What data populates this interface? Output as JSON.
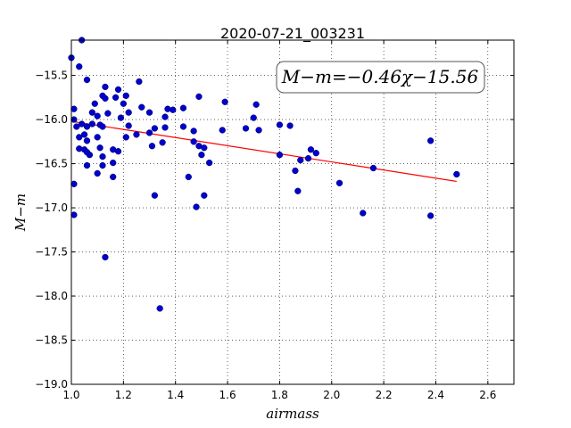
{
  "chart_data": {
    "type": "scatter",
    "title": "2020-07-21_003231",
    "xlabel": "airmass",
    "ylabel": "M−m",
    "xlim": [
      1.0,
      2.7
    ],
    "ylim": [
      -19.0,
      -15.1
    ],
    "inverted_y": true,
    "grid": true,
    "xticks": [
      1.0,
      1.2,
      1.4,
      1.6,
      1.8,
      2.0,
      2.2,
      2.4,
      2.6
    ],
    "xtick_labels": [
      "1.0",
      "1.2",
      "1.4",
      "1.6",
      "1.8",
      "2.0",
      "2.2",
      "2.4",
      "2.6"
    ],
    "yticks": [
      -15.5,
      -16.0,
      -16.5,
      -17.0,
      -17.5,
      -18.0,
      -18.5,
      -19.0
    ],
    "ytick_labels": [
      "−15.5",
      "−16.0",
      "−16.5",
      "−17.0",
      "−17.5",
      "−18.0",
      "−18.5",
      "−19.0"
    ],
    "annotation": "M−m=−0.46χ−15.56",
    "fit": {
      "slope": -0.46,
      "intercept": -15.56,
      "x_range": [
        1.0,
        2.48
      ],
      "color": "#ff0000"
    },
    "point_color": "#0000cc",
    "points": [
      [
        1.0,
        -15.3
      ],
      [
        1.01,
        -15.88
      ],
      [
        1.01,
        -16.0
      ],
      [
        1.01,
        -16.73
      ],
      [
        1.01,
        -17.08
      ],
      [
        1.02,
        -16.08
      ],
      [
        1.03,
        -16.33
      ],
      [
        1.03,
        -16.2
      ],
      [
        1.03,
        -15.4
      ],
      [
        1.04,
        -15.1
      ],
      [
        1.04,
        -16.05
      ],
      [
        1.05,
        -16.17
      ],
      [
        1.05,
        -16.34
      ],
      [
        1.06,
        -15.55
      ],
      [
        1.06,
        -16.08
      ],
      [
        1.06,
        -16.37
      ],
      [
        1.06,
        -16.24
      ],
      [
        1.06,
        -16.52
      ],
      [
        1.07,
        -16.4
      ],
      [
        1.08,
        -15.92
      ],
      [
        1.08,
        -16.05
      ],
      [
        1.09,
        -15.82
      ],
      [
        1.1,
        -16.61
      ],
      [
        1.1,
        -15.96
      ],
      [
        1.1,
        -16.2
      ],
      [
        1.11,
        -16.06
      ],
      [
        1.11,
        -16.32
      ],
      [
        1.12,
        -16.08
      ],
      [
        1.12,
        -16.42
      ],
      [
        1.12,
        -16.52
      ],
      [
        1.12,
        -15.73
      ],
      [
        1.13,
        -15.63
      ],
      [
        1.13,
        -15.76
      ],
      [
        1.13,
        -17.56
      ],
      [
        1.14,
        -15.93
      ],
      [
        1.16,
        -16.49
      ],
      [
        1.16,
        -16.65
      ],
      [
        1.16,
        -16.34
      ],
      [
        1.17,
        -15.75
      ],
      [
        1.18,
        -16.36
      ],
      [
        1.18,
        -15.66
      ],
      [
        1.19,
        -15.98
      ],
      [
        1.2,
        -15.82
      ],
      [
        1.21,
        -16.2
      ],
      [
        1.21,
        -15.73
      ],
      [
        1.22,
        -15.92
      ],
      [
        1.22,
        -16.07
      ],
      [
        1.25,
        -16.17
      ],
      [
        1.26,
        -15.57
      ],
      [
        1.27,
        -15.86
      ],
      [
        1.3,
        -15.92
      ],
      [
        1.3,
        -16.15
      ],
      [
        1.31,
        -16.3
      ],
      [
        1.32,
        -16.1
      ],
      [
        1.32,
        -16.86
      ],
      [
        1.34,
        -18.14
      ],
      [
        1.35,
        -16.26
      ],
      [
        1.36,
        -15.97
      ],
      [
        1.36,
        -16.09
      ],
      [
        1.37,
        -15.88
      ],
      [
        1.39,
        -15.89
      ],
      [
        1.43,
        -15.87
      ],
      [
        1.43,
        -16.08
      ],
      [
        1.45,
        -16.65
      ],
      [
        1.47,
        -16.13
      ],
      [
        1.47,
        -16.25
      ],
      [
        1.48,
        -16.99
      ],
      [
        1.49,
        -15.74
      ],
      [
        1.49,
        -16.3
      ],
      [
        1.5,
        -16.4
      ],
      [
        1.51,
        -16.86
      ],
      [
        1.51,
        -16.32
      ],
      [
        1.53,
        -16.49
      ],
      [
        1.58,
        -16.12
      ],
      [
        1.59,
        -15.8
      ],
      [
        1.67,
        -16.1
      ],
      [
        1.7,
        -15.98
      ],
      [
        1.71,
        -15.83
      ],
      [
        1.72,
        -16.12
      ],
      [
        1.8,
        -16.06
      ],
      [
        1.8,
        -16.4
      ],
      [
        1.84,
        -16.07
      ],
      [
        1.86,
        -16.58
      ],
      [
        1.87,
        -16.81
      ],
      [
        1.88,
        -16.46
      ],
      [
        1.91,
        -16.44
      ],
      [
        1.92,
        -16.34
      ],
      [
        1.94,
        -16.38
      ],
      [
        2.03,
        -16.72
      ],
      [
        2.12,
        -17.06
      ],
      [
        2.16,
        -16.55
      ],
      [
        2.38,
        -16.24
      ],
      [
        2.38,
        -17.09
      ],
      [
        2.48,
        -16.62
      ]
    ]
  }
}
